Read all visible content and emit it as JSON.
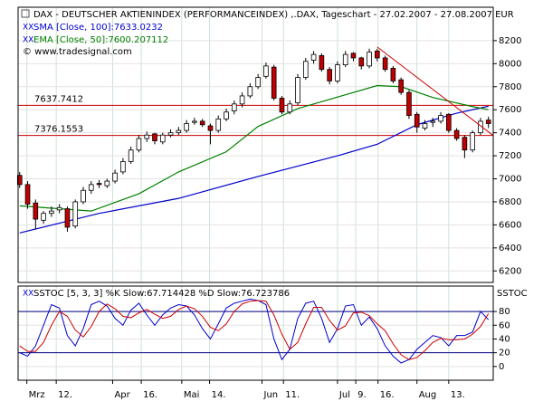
{
  "chart_data": {
    "type": "candlestick",
    "title": "DAX - DEUTSCHER AKTIENINDEX (PERFORMANCEINDEX) ,.DAX, Tageschart - 27.02.2007 - 27.08.2007 EUR",
    "watermark": "© www.tradesignal.com",
    "xlim": [
      -0.2,
      59.6
    ],
    "xticks": [
      {
        "value": 0.9,
        "label": "Mrz"
      },
      {
        "value": 4.6,
        "label": "12."
      },
      {
        "value": 11.7,
        "label": "Apr"
      },
      {
        "value": 15.3,
        "label": "16."
      },
      {
        "value": 20.4,
        "label": "Mai"
      },
      {
        "value": 23.9,
        "label": "14."
      },
      {
        "value": 30.5,
        "label": "Jun"
      },
      {
        "value": 33.2,
        "label": "11."
      },
      {
        "value": 40,
        "label": "Jul"
      },
      {
        "value": 42.3,
        "label": "9."
      },
      {
        "value": 45.1,
        "label": "16."
      },
      {
        "value": 50,
        "label": "Aug"
      },
      {
        "value": 54,
        "label": "13."
      }
    ],
    "ylim": [
      6100,
      8490
    ],
    "yticks": [
      6200,
      6400,
      6600,
      6800,
      7000,
      7200,
      7400,
      7600,
      7800,
      8000,
      8200
    ],
    "grid": true,
    "up_color": "#ffffff",
    "down_color": "#c00000",
    "open": [
      7030,
      6950,
      6790,
      6640,
      6700,
      6730,
      6740,
      6590,
      6800,
      6900,
      6960,
      6940,
      6980,
      7060,
      7150,
      7250,
      7350,
      7390,
      7320,
      7380,
      7400,
      7420,
      7490,
      7500,
      7460,
      7420,
      7520,
      7590,
      7650,
      7720,
      7800,
      7890,
      7970,
      7700,
      7580,
      7660,
      7880,
      8030,
      8070,
      7950,
      7850,
      7990,
      8090,
      8050,
      7980,
      8110,
      8050,
      7960,
      7860,
      7750,
      7560,
      7440,
      7490,
      7500,
      7560,
      7420,
      7360,
      7250,
      7400,
      7510
    ],
    "high": [
      7060,
      6980,
      6820,
      6720,
      6760,
      6780,
      6760,
      6820,
      6930,
      6980,
      6990,
      7000,
      7080,
      7180,
      7280,
      7380,
      7410,
      7400,
      7400,
      7430,
      7450,
      7510,
      7530,
      7520,
      7480,
      7550,
      7610,
      7680,
      7750,
      7830,
      7910,
      8010,
      7990,
      7720,
      7680,
      7910,
      8050,
      8110,
      8090,
      7970,
      8020,
      8110,
      8100,
      8060,
      8130,
      8130,
      8070,
      7980,
      7880,
      7770,
      7580,
      7510,
      7530,
      7580,
      7570,
      7440,
      7380,
      7420,
      7530,
      7540
    ],
    "low": [
      6920,
      6740,
      6560,
      6610,
      6670,
      6700,
      6540,
      6570,
      6780,
      6870,
      6920,
      6920,
      6960,
      7040,
      7130,
      7230,
      7320,
      7300,
      7300,
      7360,
      7380,
      7400,
      7470,
      7450,
      7300,
      7400,
      7500,
      7560,
      7620,
      7700,
      7780,
      7870,
      7680,
      7560,
      7560,
      7640,
      7860,
      8000,
      7930,
      7820,
      7830,
      7970,
      8020,
      7950,
      7960,
      8020,
      7930,
      7830,
      7730,
      7520,
      7400,
      7420,
      7450,
      7480,
      7400,
      7330,
      7180,
      7230,
      7380,
      7440
    ],
    "close": [
      6950,
      6780,
      6650,
      6700,
      6720,
      6750,
      6580,
      6800,
      6900,
      6950,
      6950,
      6980,
      7050,
      7150,
      7250,
      7350,
      7380,
      7330,
      7380,
      7400,
      7420,
      7480,
      7500,
      7470,
      7420,
      7520,
      7580,
      7650,
      7720,
      7800,
      7880,
      7980,
      7700,
      7580,
      7650,
      7880,
      8020,
      8080,
      7950,
      7850,
      7990,
      8080,
      8050,
      7980,
      8100,
      8050,
      7950,
      7850,
      7750,
      7550,
      7450,
      7480,
      7500,
      7550,
      7420,
      7350,
      7250,
      7400,
      7500,
      7480
    ],
    "series": [
      {
        "name": "SMA [Close, 100]:7633.0232",
        "color": "#0000cc",
        "x": [
          0,
          10,
          20,
          30,
          40,
          45,
          50,
          55,
          59
        ],
        "values": [
          6530,
          6700,
          6830,
          7020,
          7200,
          7300,
          7470,
          7570,
          7630
        ]
      },
      {
        "name": "EMA [Close, 50]:7600.207112",
        "color": "#008000",
        "x": [
          0,
          9,
          15,
          20,
          26,
          30,
          35,
          41,
          45,
          48,
          52,
          57,
          59
        ],
        "values": [
          6765,
          6720,
          6870,
          7060,
          7235,
          7455,
          7610,
          7730,
          7810,
          7800,
          7706,
          7627,
          7600
        ]
      }
    ],
    "levels": [
      {
        "value": 7637.7412,
        "color": "#cc0000"
      },
      {
        "value": 7376.1553,
        "color": "#cc0000"
      }
    ],
    "trendline": {
      "color": "#cc0000",
      "x": [
        45,
        59.6
      ],
      "values": [
        8145,
        7376
      ]
    },
    "oscillator": {
      "type": "line",
      "title": "SSTOC [5, 3, 3] %K Slow:67.714428 %D Slow:76.723786",
      "label": "SSTOC",
      "ylim": [
        -20,
        117
      ],
      "yticks": [
        0,
        20,
        40,
        60,
        80
      ],
      "levels": [
        80,
        20
      ],
      "level_color": "#000080",
      "series": [
        {
          "color": "#0000cc",
          "values": [
            20,
            15,
            30,
            60,
            90,
            85,
            45,
            30,
            55,
            90,
            95,
            88,
            70,
            60,
            82,
            92,
            75,
            60,
            75,
            85,
            90,
            88,
            75,
            55,
            40,
            62,
            85,
            92,
            95,
            98,
            96,
            90,
            40,
            10,
            25,
            70,
            92,
            95,
            70,
            35,
            55,
            88,
            90,
            60,
            72,
            55,
            30,
            15,
            5,
            10,
            25,
            35,
            45,
            42,
            30,
            45,
            45,
            50,
            80,
            68
          ]
        },
        {
          "color": "#cc0000",
          "values": [
            30,
            22,
            22,
            35,
            60,
            80,
            73,
            53,
            43,
            58,
            80,
            91,
            84,
            73,
            71,
            78,
            83,
            76,
            70,
            73,
            83,
            88,
            84,
            73,
            57,
            52,
            62,
            80,
            91,
            95,
            96,
            95,
            75,
            47,
            25,
            35,
            62,
            86,
            86,
            67,
            53,
            59,
            78,
            79,
            74,
            62,
            52,
            33,
            17,
            10,
            13,
            23,
            35,
            41,
            39,
            39,
            40,
            47,
            58,
            77
          ]
        }
      ]
    }
  }
}
